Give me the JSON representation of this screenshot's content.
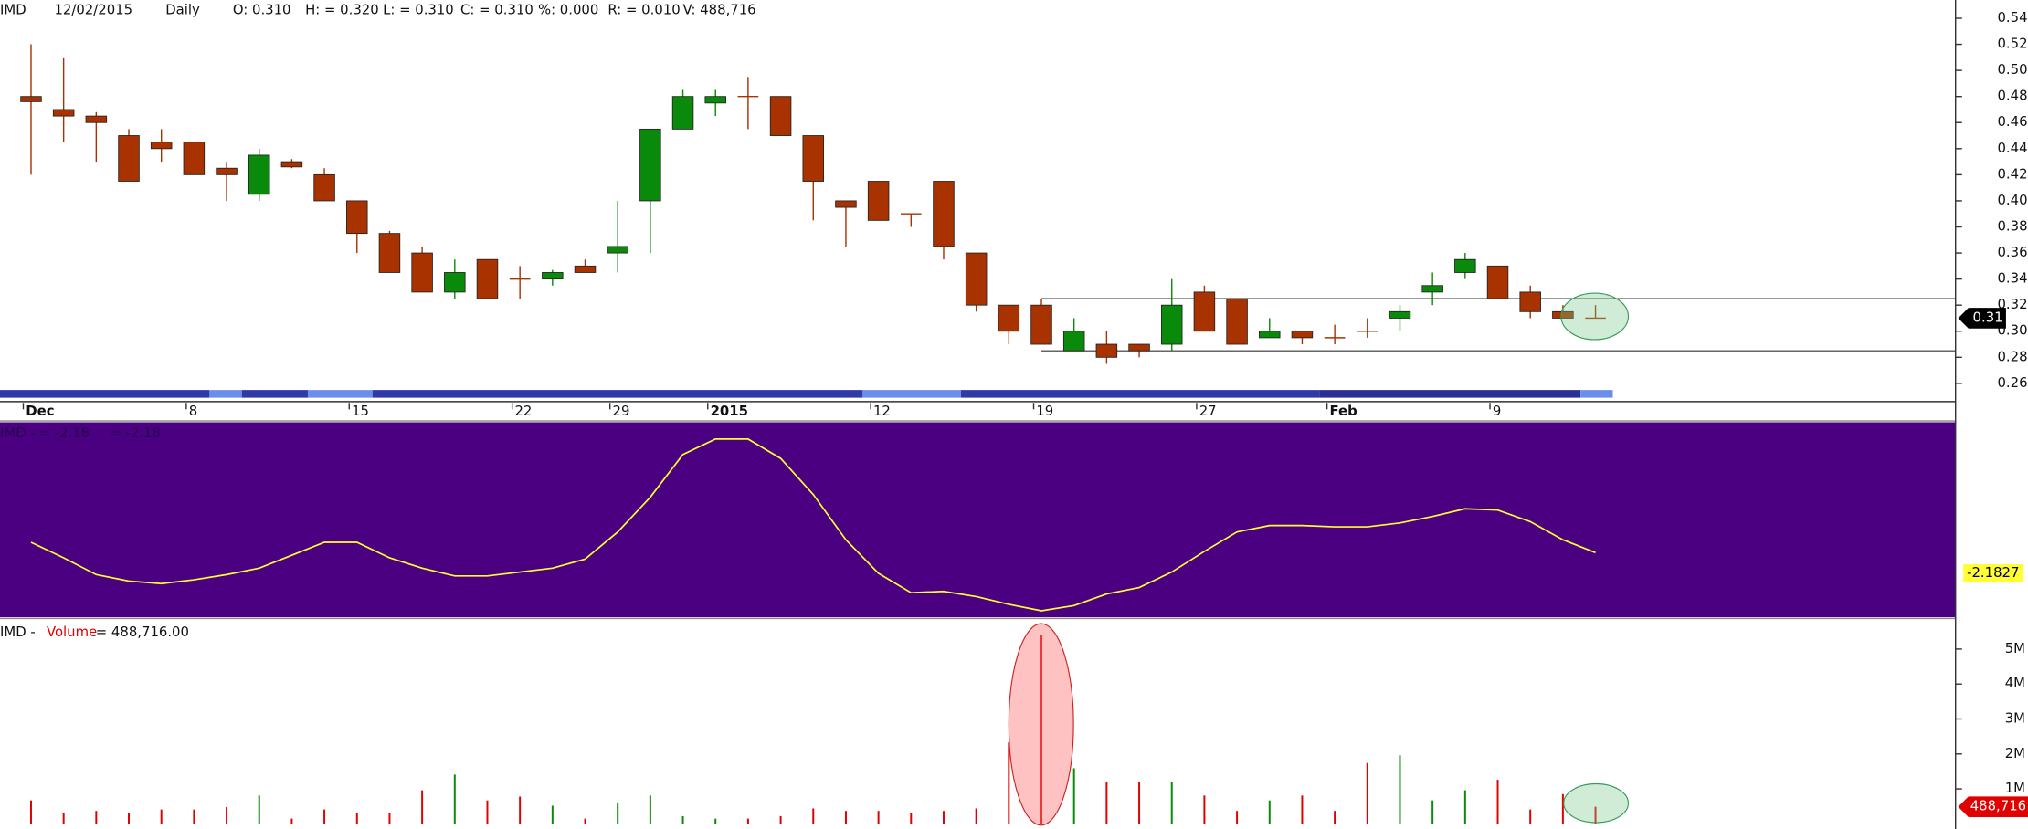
{
  "chart_data": [
    {
      "type": "candlestick",
      "header": [
        "IMD",
        "12/02/2015",
        "Daily",
        "O: 0.310",
        "H: = 0.320",
        "L: = 0.310",
        "C: = 0.310",
        "%: 0.000",
        "R: = 0.010",
        "V: 488,716"
      ],
      "categories": [
        "Dec",
        null,
        null,
        null,
        null,
        "8",
        null,
        null,
        null,
        null,
        "15",
        null,
        null,
        null,
        null,
        "22",
        null,
        null,
        "29",
        null,
        null,
        "2015",
        null,
        null,
        null,
        null,
        "12",
        null,
        null,
        null,
        null,
        "19",
        null,
        null,
        null,
        null,
        "27",
        null,
        null,
        null,
        "Feb",
        null,
        null,
        null,
        null,
        "9",
        null,
        null,
        null
      ],
      "open": [
        0.48,
        0.47,
        0.465,
        0.45,
        0.445,
        0.445,
        0.425,
        0.405,
        0.43,
        0.42,
        0.4,
        0.375,
        0.36,
        0.33,
        0.355,
        0.34,
        0.34,
        0.35,
        0.36,
        0.4,
        0.455,
        0.475,
        0.48,
        0.48,
        0.45,
        0.4,
        0.415,
        0.39,
        0.415,
        0.36,
        0.32,
        0.32,
        0.285,
        0.29,
        0.29,
        0.29,
        0.33,
        0.325,
        0.295,
        0.3,
        0.295,
        0.3,
        0.31,
        0.33,
        0.345,
        0.35,
        0.33,
        0.315,
        0.31
      ],
      "high": [
        0.52,
        0.51,
        0.468,
        0.455,
        0.455,
        0.445,
        0.43,
        0.44,
        0.432,
        0.425,
        0.4,
        0.377,
        0.365,
        0.355,
        0.355,
        0.35,
        0.347,
        0.355,
        0.4,
        0.455,
        0.485,
        0.485,
        0.495,
        0.48,
        0.45,
        0.4,
        0.415,
        0.39,
        0.415,
        0.36,
        0.32,
        0.325,
        0.31,
        0.3,
        0.29,
        0.34,
        0.335,
        0.325,
        0.31,
        0.3,
        0.305,
        0.31,
        0.32,
        0.345,
        0.36,
        0.35,
        0.335,
        0.32,
        0.32
      ],
      "low": [
        0.42,
        0.445,
        0.43,
        0.415,
        0.43,
        0.42,
        0.4,
        0.4,
        0.425,
        0.4,
        0.36,
        0.345,
        0.33,
        0.325,
        0.325,
        0.325,
        0.335,
        0.345,
        0.345,
        0.36,
        0.455,
        0.465,
        0.455,
        0.45,
        0.385,
        0.365,
        0.385,
        0.38,
        0.355,
        0.315,
        0.29,
        0.29,
        0.285,
        0.275,
        0.28,
        0.285,
        0.3,
        0.29,
        0.295,
        0.29,
        0.29,
        0.295,
        0.3,
        0.32,
        0.34,
        0.325,
        0.31,
        0.31,
        0.31
      ],
      "close": [
        0.476,
        0.465,
        0.46,
        0.415,
        0.44,
        0.42,
        0.42,
        0.435,
        0.426,
        0.4,
        0.375,
        0.345,
        0.33,
        0.345,
        0.325,
        0.34,
        0.345,
        0.345,
        0.365,
        0.455,
        0.48,
        0.48,
        0.48,
        0.45,
        0.415,
        0.395,
        0.385,
        0.39,
        0.365,
        0.32,
        0.3,
        0.29,
        0.3,
        0.28,
        0.285,
        0.32,
        0.3,
        0.29,
        0.3,
        0.295,
        0.295,
        0.3,
        0.315,
        0.335,
        0.355,
        0.325,
        0.315,
        0.31,
        0.31
      ],
      "up_color": "#0a8a0a",
      "down_color": "#a83200",
      "hlines": [
        0.325,
        0.285
      ],
      "ylim": [
        0.247,
        0.554
      ],
      "yticks": [
        0.26,
        0.28,
        {
          "value": 0.3,
          "label": "0.30"
        },
        0.32,
        0.34,
        0.36,
        0.38,
        {
          "value": 0.4,
          "label": "0.40"
        },
        0.42,
        0.44,
        0.46,
        0.48,
        {
          "value": 0.5,
          "label": "0.50"
        },
        0.52,
        0.54
      ]
    },
    {
      "type": "line",
      "header": [
        "IMD -",
        "= -2.18",
        "= -2.18"
      ],
      "color": "#ffff33",
      "background": "#4b0082",
      "values": [
        -2.063,
        -2.243,
        -2.438,
        -2.513,
        -2.543,
        -2.498,
        -2.438,
        -2.363,
        -2.213,
        -2.063,
        -2.063,
        -2.243,
        -2.363,
        -2.453,
        -2.453,
        -2.408,
        -2.363,
        -2.258,
        -1.943,
        -1.538,
        -1.043,
        -0.863,
        -0.863,
        -1.088,
        -1.508,
        -2.033,
        -2.423,
        -2.648,
        -2.633,
        -2.693,
        -2.783,
        -2.858,
        -2.798,
        -2.663,
        -2.588,
        -2.408,
        -2.168,
        -1.943,
        -1.868,
        -1.868,
        -1.883,
        -1.883,
        -1.838,
        -1.763,
        -1.673,
        -1.688,
        -1.823,
        -2.033,
        -2.1827
      ]
    },
    {
      "type": "bar",
      "header": [
        "IMD -",
        "Volume",
        "= 488,716.00"
      ],
      "up_color": "#0a8a0a",
      "down_color": "#e00000",
      "values": [
        670000,
        300000,
        370000,
        300000,
        410000,
        410000,
        480000,
        810000,
        150000,
        410000,
        300000,
        300000,
        960000,
        1410000,
        670000,
        780000,
        520000,
        150000,
        590000,
        810000,
        220000,
        150000,
        150000,
        220000,
        440000,
        370000,
        370000,
        300000,
        370000,
        440000,
        2330000,
        5410000,
        1590000,
        1190000,
        1190000,
        1190000,
        810000,
        370000,
        670000,
        810000,
        370000,
        1740000,
        1960000,
        670000,
        960000,
        1260000,
        410000,
        850000,
        488716
      ],
      "value_labels": [
        null,
        null,
        null,
        null,
        null,
        null,
        null,
        null,
        null,
        null,
        null,
        null,
        null,
        null,
        null,
        null,
        null,
        null,
        null,
        null,
        null,
        null,
        null,
        null,
        null,
        null,
        null,
        null,
        null,
        null,
        null,
        null,
        null,
        null,
        null,
        null,
        null,
        null,
        null,
        null,
        null,
        null,
        null,
        null,
        null,
        null,
        null,
        null,
        "488,716"
      ],
      "ylim": [
        0,
        5800000
      ],
      "yticks": [
        {
          "value": 1000000,
          "label": "1M"
        },
        {
          "value": 2000000,
          "label": "2M"
        },
        {
          "value": 3000000,
          "label": "3M"
        },
        {
          "value": 4000000,
          "label": "4M"
        },
        {
          "value": 5000000,
          "label": "5M"
        }
      ]
    }
  ]
}
